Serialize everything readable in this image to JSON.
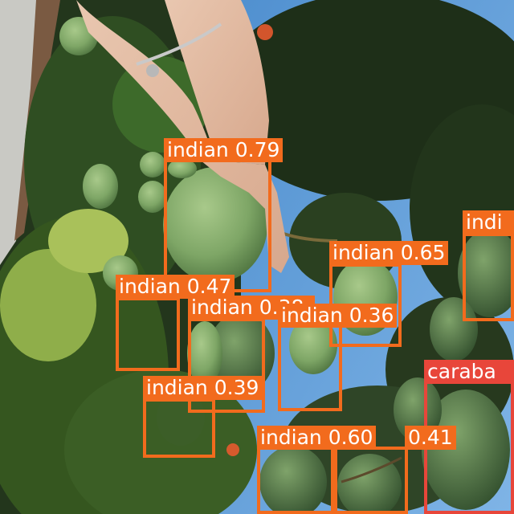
{
  "colors": {
    "indian_box": "#f26b1d",
    "carabao_box": "#e8463a",
    "label_text": "#ffffff"
  },
  "detections": [
    {
      "label": "indian 0.79",
      "cls": "indian"
    },
    {
      "label": "indian 0.65",
      "cls": "indian"
    },
    {
      "label": "indi",
      "cls": "indian"
    },
    {
      "label": "indian 0.47",
      "cls": "indian"
    },
    {
      "label": "indian 0.38",
      "cls": "indian"
    },
    {
      "label": "indian 0.36",
      "cls": "indian"
    },
    {
      "label": "indian 0.39",
      "cls": "indian"
    },
    {
      "label": "caraba",
      "cls": "carabao"
    },
    {
      "label": "indian 0.60",
      "cls": "indian"
    },
    {
      "label": "0.41",
      "cls": "indian"
    }
  ]
}
